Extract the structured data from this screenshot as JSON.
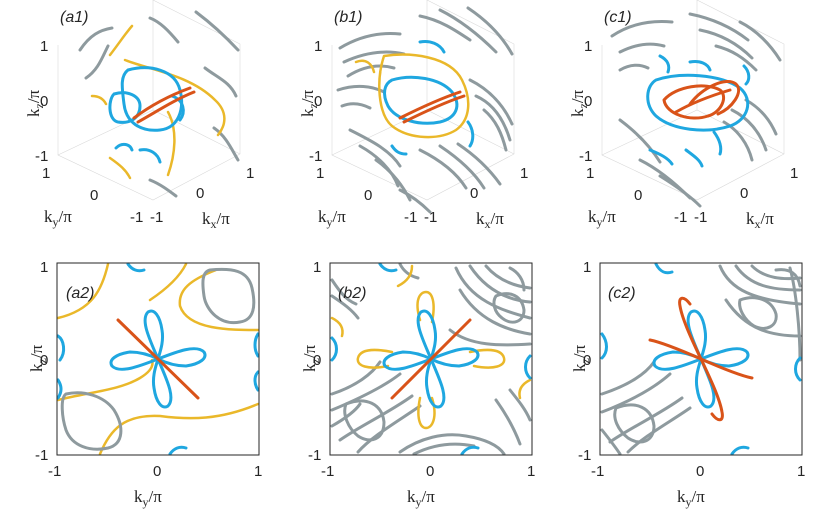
{
  "colors": {
    "blue": "#1fa7e0",
    "yellow": "#eab82a",
    "gray": "#8e9a9e",
    "red": "#d95319"
  },
  "panels_3d": [
    {
      "label": "(a1)",
      "z_ticks": [
        "1",
        "0",
        "-1"
      ],
      "y_ticks": [
        "1",
        "0",
        "-1"
      ],
      "x_ticks": [
        "-1",
        "0",
        "1"
      ]
    },
    {
      "label": "(b1)",
      "z_ticks": [
        "1",
        "0",
        "-1"
      ],
      "y_ticks": [
        "1",
        "0",
        "-1"
      ],
      "x_ticks": [
        "-1",
        "0",
        "1"
      ]
    },
    {
      "label": "(c1)",
      "z_ticks": [
        "1",
        "0",
        "-1"
      ],
      "y_ticks": [
        "1",
        "0",
        "-1"
      ],
      "x_ticks": [
        "-1",
        "0",
        "1"
      ]
    }
  ],
  "panels_2d": [
    {
      "label": "(a2)",
      "x_ticks": [
        "-1",
        "0",
        "1"
      ],
      "y_ticks": [
        "1",
        "0",
        "-1"
      ]
    },
    {
      "label": "(b2)",
      "x_ticks": [
        "-1",
        "0",
        "1"
      ],
      "y_ticks": [
        "1",
        "0",
        "-1"
      ]
    },
    {
      "label": "(c2)",
      "x_ticks": [
        "-1",
        "0",
        "1"
      ],
      "y_ticks": [
        "1",
        "0",
        "-1"
      ]
    }
  ],
  "axes": {
    "kz": {
      "main": "k",
      "sub": "z",
      "rest": "/π"
    },
    "ky": {
      "main": "k",
      "sub": "y",
      "rest": "/π"
    },
    "kx": {
      "main": "k",
      "sub": "x",
      "rest": "/π"
    }
  }
}
